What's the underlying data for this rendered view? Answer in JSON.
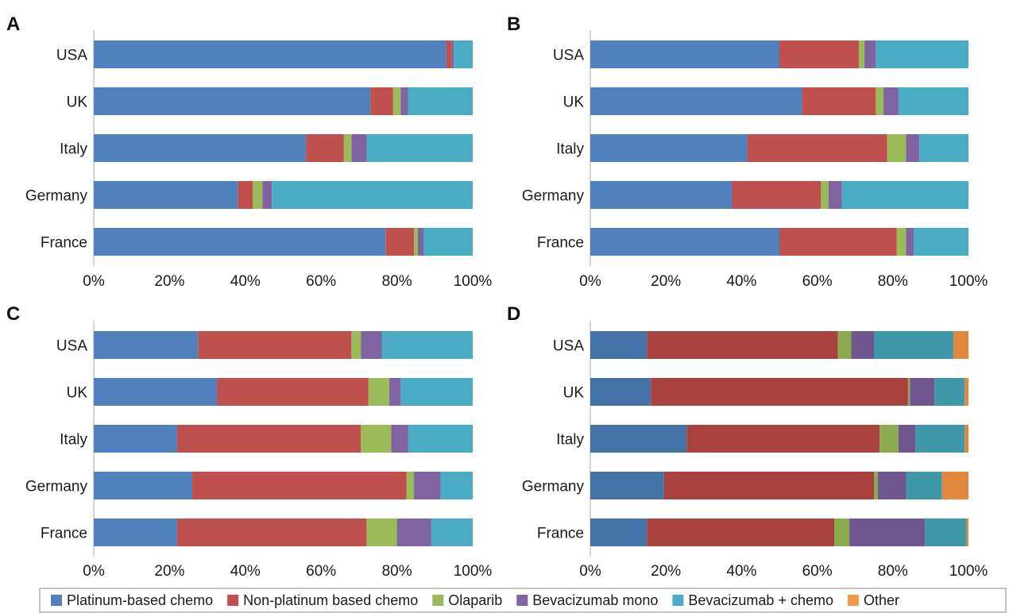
{
  "chart_data": [
    {
      "type": "bar",
      "stacked": "percent",
      "orientation": "horizontal",
      "panel": "A",
      "categories": [
        "USA",
        "UK",
        "Italy",
        "Germany",
        "France"
      ],
      "xlim": [
        0,
        100
      ],
      "xticks": [
        "0%",
        "20%",
        "40%",
        "60%",
        "80%",
        "100%"
      ],
      "series": [
        {
          "name": "Platinum-based chemo",
          "values": [
            93,
            73,
            56,
            38,
            77
          ]
        },
        {
          "name": "Non-platinum based chemo",
          "values": [
            1.5,
            6,
            10,
            4,
            7.5
          ]
        },
        {
          "name": "Olaparib",
          "values": [
            0,
            2,
            2,
            2.5,
            1
          ]
        },
        {
          "name": "Bevacizumab mono",
          "values": [
            0.5,
            2,
            4,
            2.5,
            1.5
          ]
        },
        {
          "name": "Bevacizumab + chemo",
          "values": [
            5,
            17,
            28,
            53,
            13
          ]
        },
        {
          "name": "Other",
          "values": [
            0,
            0,
            0,
            0,
            0
          ]
        }
      ]
    },
    {
      "type": "bar",
      "stacked": "percent",
      "orientation": "horizontal",
      "panel": "B",
      "categories": [
        "USA",
        "UK",
        "Italy",
        "Germany",
        "France"
      ],
      "xlim": [
        0,
        100
      ],
      "xticks": [
        "0%",
        "20%",
        "40%",
        "60%",
        "80%",
        "100%"
      ],
      "series": [
        {
          "name": "Platinum-based chemo",
          "values": [
            50,
            56,
            41.5,
            37.5,
            50
          ]
        },
        {
          "name": "Non-platinum based chemo",
          "values": [
            21,
            19.5,
            37,
            23.5,
            31
          ]
        },
        {
          "name": "Olaparib",
          "values": [
            1.5,
            2,
            5,
            2,
            2.5
          ]
        },
        {
          "name": "Bevacizumab mono",
          "values": [
            3,
            4,
            3.5,
            3.5,
            2
          ]
        },
        {
          "name": "Bevacizumab + chemo",
          "values": [
            24.5,
            18.5,
            13,
            33.5,
            14.5
          ]
        },
        {
          "name": "Other",
          "values": [
            0,
            0,
            0,
            0,
            0
          ]
        }
      ]
    },
    {
      "type": "bar",
      "stacked": "percent",
      "orientation": "horizontal",
      "panel": "C",
      "categories": [
        "USA",
        "UK",
        "Italy",
        "Germany",
        "France"
      ],
      "xlim": [
        0,
        100
      ],
      "xticks": [
        "0%",
        "20%",
        "40%",
        "60%",
        "80%",
        "100%"
      ],
      "series": [
        {
          "name": "Platinum-based chemo",
          "values": [
            27.5,
            32.5,
            22,
            26,
            22
          ]
        },
        {
          "name": "Non-platinum based chemo",
          "values": [
            40.5,
            40,
            48.5,
            56.5,
            50
          ]
        },
        {
          "name": "Olaparib",
          "values": [
            2.5,
            5.5,
            8,
            2,
            8
          ]
        },
        {
          "name": "Bevacizumab mono",
          "values": [
            5.5,
            3,
            4.5,
            7,
            9
          ]
        },
        {
          "name": "Bevacizumab + chemo",
          "values": [
            24,
            19,
            17,
            8.5,
            11
          ]
        },
        {
          "name": "Other",
          "values": [
            0,
            0,
            0,
            0,
            0
          ]
        }
      ]
    },
    {
      "type": "bar",
      "stacked": "percent",
      "orientation": "horizontal",
      "panel": "D",
      "categories": [
        "USA",
        "UK",
        "Italy",
        "Germany",
        "France"
      ],
      "xlim": [
        0,
        100
      ],
      "xticks": [
        "0%",
        "20%",
        "40%",
        "60%",
        "80%",
        "100%"
      ],
      "series": [
        {
          "name": "Platinum-based chemo",
          "values": [
            15,
            16,
            25.5,
            19.5,
            15
          ]
        },
        {
          "name": "Non-platinum based chemo",
          "values": [
            50.5,
            68,
            51,
            55.5,
            49.5
          ]
        },
        {
          "name": "Olaparib",
          "values": [
            3.5,
            0.5,
            5,
            1,
            4
          ]
        },
        {
          "name": "Bevacizumab mono",
          "values": [
            6,
            6.5,
            4.5,
            7.5,
            20
          ]
        },
        {
          "name": "Bevacizumab + chemo",
          "values": [
            21,
            8,
            13,
            9.5,
            11
          ]
        },
        {
          "name": "Other",
          "values": [
            4,
            1,
            1,
            7,
            0.5
          ]
        }
      ]
    }
  ],
  "colors": {
    "abc": [
      "#4f81bd",
      "#c0504d",
      "#9bbb59",
      "#8064a2",
      "#4bacc6",
      "#f79646"
    ],
    "d": [
      "#4473a8",
      "#a9423f",
      "#8aab4e",
      "#70568f",
      "#3f98a8",
      "#e0883e"
    ],
    "axis": "#b7b7b7"
  },
  "legend": {
    "entries": [
      "Platinum-based chemo",
      "Non-platinum based chemo",
      "Olaparib",
      "Bevacizumab mono",
      "Bevacizumab + chemo",
      "Other"
    ]
  }
}
